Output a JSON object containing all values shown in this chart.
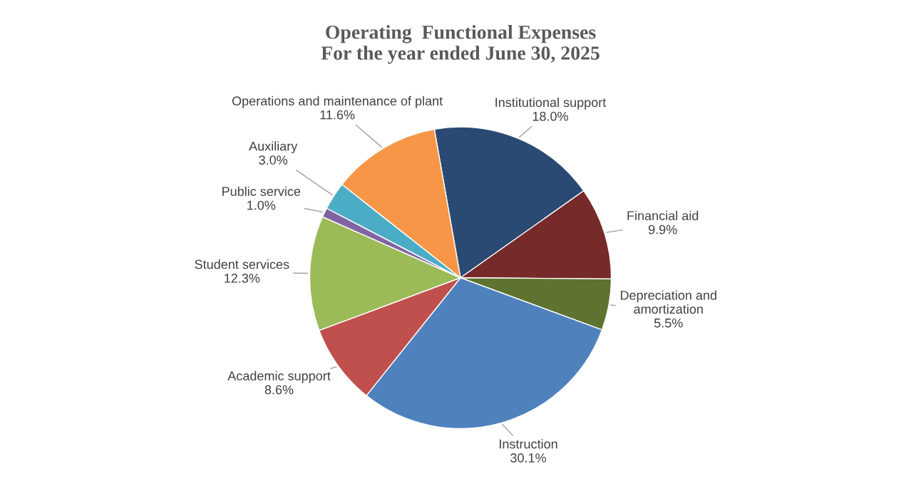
{
  "chart_data": {
    "type": "pie",
    "title": "Operating  Functional Expenses\nFor the year ended June 30, 2025",
    "categories": [
      "Institutional support",
      "Financial aid",
      "Depreciation and\namortization",
      "Instruction",
      "Academic support",
      "Student services",
      "Public service",
      "Auxiliary",
      "Operations and maintenance of plant"
    ],
    "values": [
      18.0,
      9.9,
      5.5,
      30.1,
      8.6,
      12.3,
      1.0,
      3.0,
      11.6
    ],
    "value_labels": [
      "18.0%",
      "9.9%",
      "5.5%",
      "30.1%",
      "8.6%",
      "12.3%",
      "1.0%",
      "3.0%",
      "11.6%"
    ],
    "colors": [
      "#2a4a73",
      "#772a2a",
      "#5e7330",
      "#4f81bd",
      "#c0504d",
      "#9bbb59",
      "#8064a2",
      "#4bacc6",
      "#f79646"
    ],
    "legend": false
  }
}
